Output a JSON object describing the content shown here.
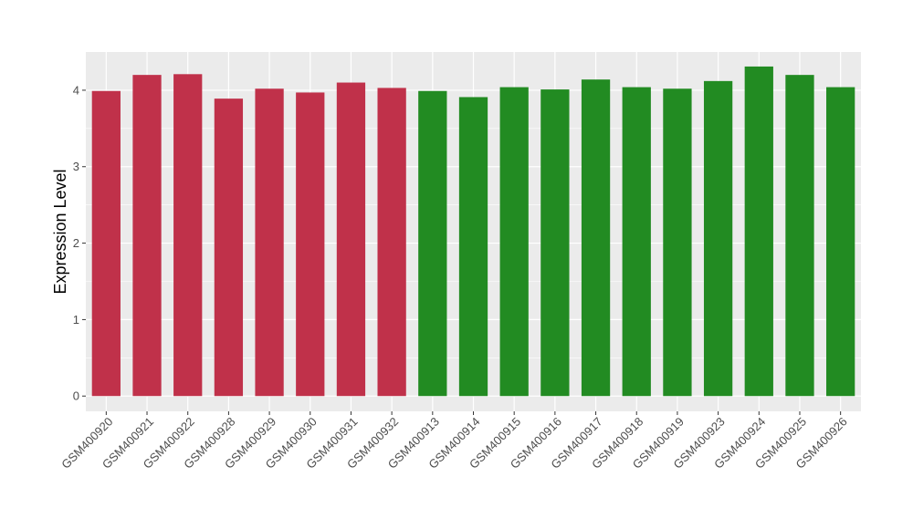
{
  "chart_data": {
    "type": "bar",
    "title": "",
    "xlabel": "",
    "ylabel": "Expression Level",
    "ylim": [
      -0.2,
      4.5
    ],
    "yticks": [
      0,
      1,
      2,
      3,
      4
    ],
    "categories": [
      "GSM400920",
      "GSM400921",
      "GSM400922",
      "GSM400928",
      "GSM400929",
      "GSM400930",
      "GSM400931",
      "GSM400932",
      "GSM400913",
      "GSM400914",
      "GSM400915",
      "GSM400916",
      "GSM400917",
      "GSM400918",
      "GSM400919",
      "GSM400923",
      "GSM400924",
      "GSM400925",
      "GSM400926"
    ],
    "values": [
      3.99,
      4.2,
      4.21,
      3.89,
      4.02,
      3.97,
      4.1,
      4.03,
      3.99,
      3.91,
      4.04,
      4.01,
      4.14,
      4.04,
      4.02,
      4.12,
      4.31,
      4.2,
      4.04
    ],
    "group_colors": [
      "#c0314a",
      "#c0314a",
      "#c0314a",
      "#c0314a",
      "#c0314a",
      "#c0314a",
      "#c0314a",
      "#c0314a",
      "#228b22",
      "#228b22",
      "#228b22",
      "#228b22",
      "#228b22",
      "#228b22",
      "#228b22",
      "#228b22",
      "#228b22",
      "#228b22",
      "#228b22"
    ],
    "panel_background": "#ebebeb",
    "grid": true,
    "gridline_color": "#ffffff"
  }
}
